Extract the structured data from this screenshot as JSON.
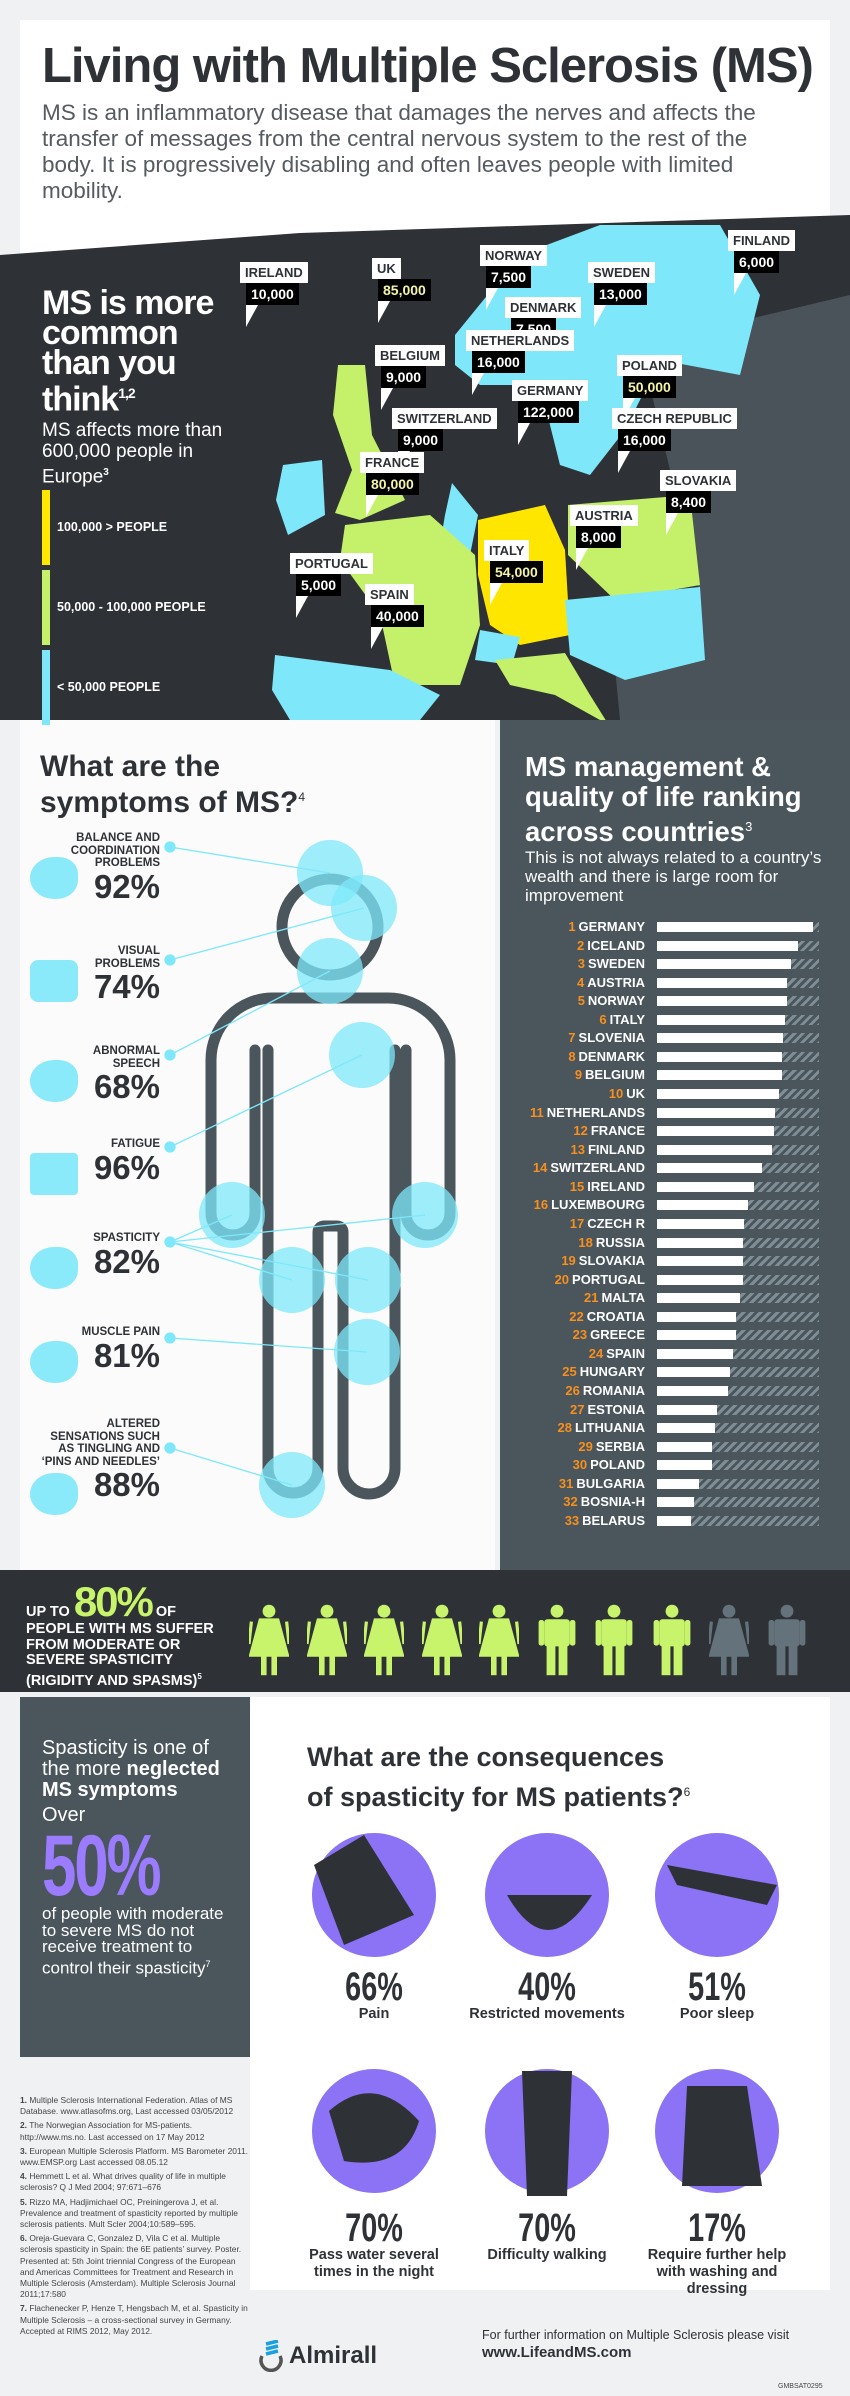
{
  "header": {
    "title_pre": "Living with ",
    "title_bold": "Multiple Sclerosis",
    "title_post": " (MS)",
    "intro": "MS is an inflammatory disease that damages the nerves and affects the transfer of messages from the central nervous system to the rest of the body. It is progressively disabling and often leaves people with limited mobility."
  },
  "map": {
    "head_pre": "MS is ",
    "head_bold1": "more",
    "head_bold2": "common",
    "head_post": "than you think",
    "head_ref": "1,2",
    "sub": "MS affects more than 600,000 people in Europe",
    "sub_ref": "3",
    "colors": {
      "high": "#ffe600",
      "mid": "#c5f06a",
      "low": "#7ee8fa"
    },
    "legend": [
      {
        "label": "100,000 > PEOPLE",
        "color": "#ffe600"
      },
      {
        "label": "50,000 - 100,000 PEOPLE",
        "color": "#c5f06a"
      },
      {
        "label": "< 50,000 PEOPLE",
        "color": "#7ee8fa"
      }
    ],
    "countries": [
      {
        "name": "NORWAY",
        "value": "7,500"
      },
      {
        "name": "FINLAND",
        "value": "6,000"
      },
      {
        "name": "SWEDEN",
        "value": "13,000"
      },
      {
        "name": "DENMARK",
        "value": "7,500"
      },
      {
        "name": "IRELAND",
        "value": "10,000"
      },
      {
        "name": "UK",
        "value": "85,000"
      },
      {
        "name": "NETHERLANDS",
        "value": "16,000"
      },
      {
        "name": "POLAND",
        "value": "50,000"
      },
      {
        "name": "BELGIUM",
        "value": "9,000"
      },
      {
        "name": "GERMANY",
        "value": "122,000"
      },
      {
        "name": "CZECH REPUBLIC",
        "value": "16,000"
      },
      {
        "name": "SWITZERLAND",
        "value": "9,000"
      },
      {
        "name": "FRANCE",
        "value": "80,000"
      },
      {
        "name": "SLOVAKIA",
        "value": "8,400"
      },
      {
        "name": "AUSTRIA",
        "value": "8,000"
      },
      {
        "name": "PORTUGAL",
        "value": "5,000"
      },
      {
        "name": "ITALY",
        "value": "54,000"
      },
      {
        "name": "SPAIN",
        "value": "40,000"
      }
    ]
  },
  "symptoms": {
    "title_pre": "What are the",
    "title_bold": "symptoms",
    "title_post": " of MS?",
    "title_ref": "4",
    "items": [
      {
        "label": "BALANCE AND COORDINATION PROBLEMS",
        "percent": "92%",
        "icon": "falling-person-icon"
      },
      {
        "label": "VISUAL PROBLEMS",
        "percent": "74%",
        "icon": "glasses-icon"
      },
      {
        "label": "ABNORMAL SPEECH",
        "percent": "68%",
        "icon": "speech-head-icon"
      },
      {
        "label": "FATIGUE",
        "percent": "96%",
        "icon": "battery-icon"
      },
      {
        "label": "SPASTICITY",
        "percent": "82%",
        "icon": "locked-hand-icon"
      },
      {
        "label": "MUSCLE PAIN",
        "percent": "81%",
        "icon": "muscle-pain-icon"
      },
      {
        "label": "ALTERED SENSATIONS SUCH AS TINGLING AND ‘PINS AND NEEDLES’",
        "percent": "88%",
        "icon": "foot-pins-icon"
      }
    ]
  },
  "ranking": {
    "title": "MS management & quality of life ranking across countries",
    "title_ref": "3",
    "subtitle": "This is not always related to a country’s wealth and there is large room for improvement",
    "items": [
      {
        "rank": "1",
        "country": "GERMANY",
        "score": 0.96
      },
      {
        "rank": "2",
        "country": "ICELAND",
        "score": 0.87
      },
      {
        "rank": "3",
        "country": "SWEDEN",
        "score": 0.83
      },
      {
        "rank": "4",
        "country": "AUSTRIA",
        "score": 0.8
      },
      {
        "rank": "5",
        "country": "NORWAY",
        "score": 0.8
      },
      {
        "rank": "6",
        "country": "ITALY",
        "score": 0.79
      },
      {
        "rank": "7",
        "country": "SLOVENIA",
        "score": 0.78
      },
      {
        "rank": "8",
        "country": "DENMARK",
        "score": 0.77
      },
      {
        "rank": "9",
        "country": "BELGIUM",
        "score": 0.77
      },
      {
        "rank": "10",
        "country": "UK",
        "score": 0.75
      },
      {
        "rank": "11",
        "country": "NETHERLANDS",
        "score": 0.73
      },
      {
        "rank": "12",
        "country": "FRANCE",
        "score": 0.72
      },
      {
        "rank": "13",
        "country": "FINLAND",
        "score": 0.71
      },
      {
        "rank": "14",
        "country": "SWITZERLAND",
        "score": 0.65
      },
      {
        "rank": "15",
        "country": "IRELAND",
        "score": 0.6
      },
      {
        "rank": "16",
        "country": "LUXEMBOURG",
        "score": 0.56
      },
      {
        "rank": "17",
        "country": "CZECH R",
        "score": 0.54
      },
      {
        "rank": "18",
        "country": "RUSSIA",
        "score": 0.53
      },
      {
        "rank": "19",
        "country": "SLOVAKIA",
        "score": 0.53
      },
      {
        "rank": "20",
        "country": "PORTUGAL",
        "score": 0.53
      },
      {
        "rank": "21",
        "country": "MALTA",
        "score": 0.51
      },
      {
        "rank": "22",
        "country": "CROATIA",
        "score": 0.49
      },
      {
        "rank": "23",
        "country": "GREECE",
        "score": 0.49
      },
      {
        "rank": "24",
        "country": "SPAIN",
        "score": 0.47
      },
      {
        "rank": "25",
        "country": "HUNGARY",
        "score": 0.45
      },
      {
        "rank": "26",
        "country": "ROMANIA",
        "score": 0.44
      },
      {
        "rank": "27",
        "country": "ESTONIA",
        "score": 0.37
      },
      {
        "rank": "28",
        "country": "LITHUANIA",
        "score": 0.36
      },
      {
        "rank": "29",
        "country": "SERBIA",
        "score": 0.34
      },
      {
        "rank": "30",
        "country": "POLAND",
        "score": 0.34
      },
      {
        "rank": "31",
        "country": "BULGARIA",
        "score": 0.26
      },
      {
        "rank": "32",
        "country": "BOSNIA-H",
        "score": 0.23
      },
      {
        "rank": "33",
        "country": "BELARUS",
        "score": 0.21
      }
    ]
  },
  "banner": {
    "pre": "UP TO ",
    "big": "80%",
    "post": " OF PEOPLE WITH MS SUFFER FROM MODERATE OR SEVERE SPASTICITY (RIGIDITY AND SPASMS)",
    "ref": "5",
    "figures": [
      "woman",
      "woman",
      "woman",
      "woman",
      "woman",
      "man",
      "man",
      "man",
      "woman",
      "man"
    ],
    "highlighted": 8,
    "colors": {
      "on": "#c7f46a",
      "off": "#64727b"
    }
  },
  "neglected": {
    "l1": "Spasticity is one of the more ",
    "bold": "neglected MS symptoms",
    "over": "Over",
    "big": "50%",
    "rest": "of people with moderate to severe MS do not receive treatment to control their spasticity",
    "ref": "7"
  },
  "consequences": {
    "title_pre": "What are the ",
    "title_b1": "consequences",
    "title_mid": "of ",
    "title_b2": "spasticity for MS patients?",
    "title_ref": "6",
    "accent": "#8c72f5",
    "items": [
      {
        "percent": "66%",
        "label": "Pain",
        "icon": "painful-knee-icon"
      },
      {
        "percent": "40%",
        "label": "Restricted movements",
        "icon": "spilling-cup-icon"
      },
      {
        "percent": "51%",
        "label": "Poor sleep",
        "icon": "bed-icon"
      },
      {
        "percent": "70%",
        "label": "Pass water several times in the night",
        "icon": "toilet-icon"
      },
      {
        "percent": "70%",
        "label": "Difficulty walking",
        "icon": "walking-cane-icon"
      },
      {
        "percent": "17%",
        "label": "Require further help with washing and dressing",
        "icon": "dressing-help-icon"
      }
    ]
  },
  "references": [
    {
      "n": "1.",
      "text": "Multiple Sclerosis International Federation. Atlas of MS Database. www.atlasofms.org, Last accessed 03/05/2012"
    },
    {
      "n": "2.",
      "text": "The Norwegian Association for MS-patients. http://www.ms.no. Last accessed on 17 May 2012"
    },
    {
      "n": "3.",
      "text": "European Multiple Sclerosis Platform. MS Barometer 2011. www.EMSP.org Last accessed 08.05.12"
    },
    {
      "n": "4.",
      "text": "Hemmett L et al. What drives quality of life in multiple sclerosis? Q J Med 2004; 97:671–676"
    },
    {
      "n": "5.",
      "text": "Rizzo MA, Hadjimichael OC, Preiningerova J, et al. Prevalence and treatment of spasticity reported by multiple sclerosis patients. Mult Scler 2004;10:589–595."
    },
    {
      "n": "6.",
      "text": "Oreja-Guevara C, Gonzalez D, Vila C et al. Multiple sclerosis spasticity in Spain: the 6E patients’ survey. Poster. Presented at: 5th Joint triennial Congress of the European and Americas Committees for Treatment and Research in Multiple Sclerosis (Amsterdam). Multiple Sclerosis Journal 2011;17:580"
    },
    {
      "n": "7.",
      "text": "Flachenecker P, Henze T, Hengsbach M, et al. Spasticity in Multiple Sclerosis – a cross-sectional survey in Germany. Accepted at RIMS 2012, May 2012."
    }
  ],
  "footer": {
    "brand": "Almirall",
    "info": "For further information on Multiple Sclerosis please visit",
    "url": "www.LifeandMS.com",
    "code": "GMBSAT0295"
  }
}
